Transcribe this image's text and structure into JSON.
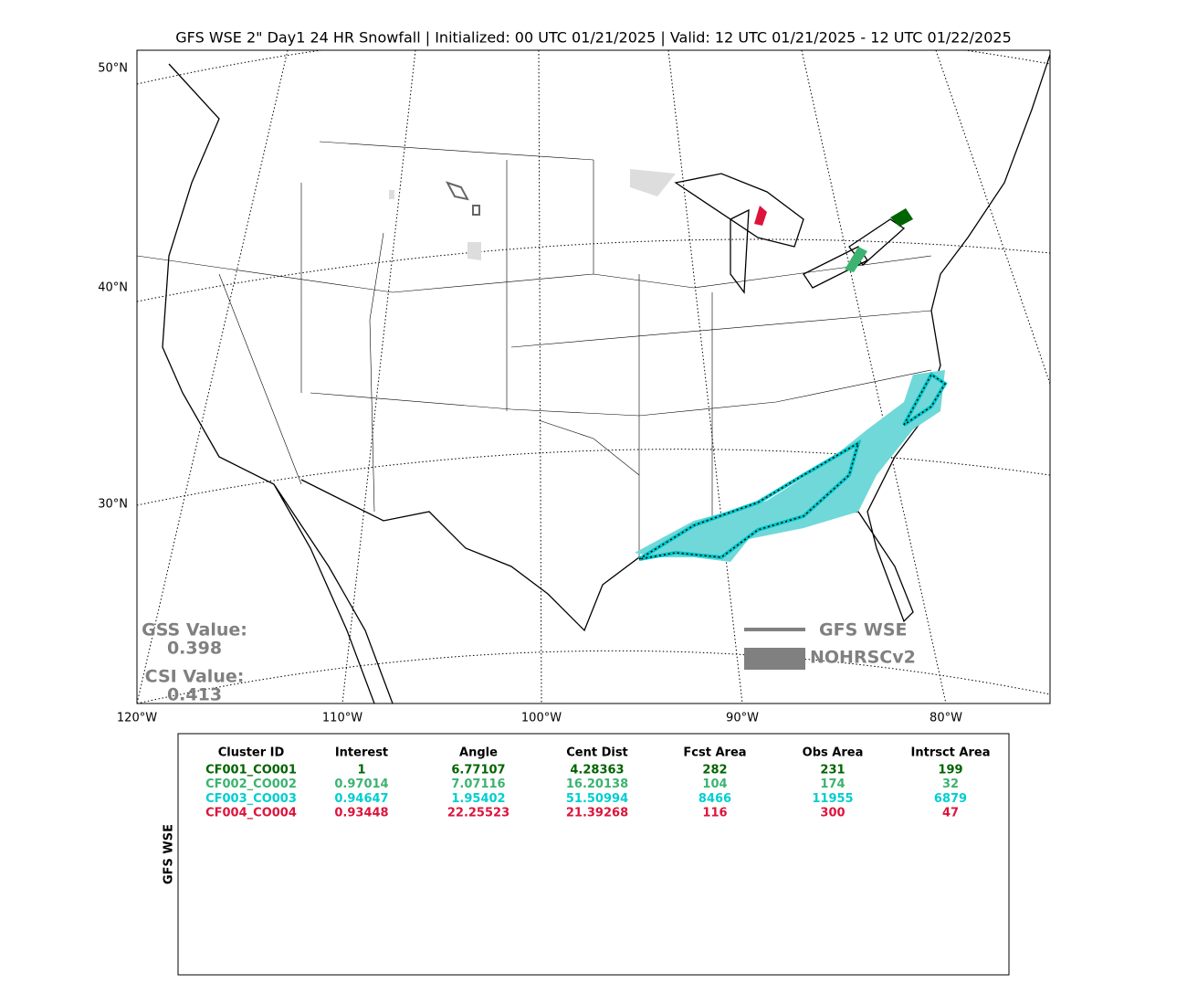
{
  "title": "GFS WSE 2\" Day1 24 HR Snowfall | Initialized: 00 UTC 01/21/2025 | Valid: 12 UTC 01/21/2025 - 12 UTC 01/22/2025",
  "map": {
    "lat_labels": [
      "50°N",
      "40°N",
      "30°N"
    ],
    "lon_labels": [
      "120°W",
      "110°W",
      "100°W",
      "90°W",
      "80°W"
    ],
    "scores": [
      {
        "label": "GSS Value:",
        "value": "0.398"
      },
      {
        "label": "CSI Value:",
        "value": "0.413"
      }
    ],
    "legend": [
      "GFS WSE",
      "NOHRSCv2"
    ]
  },
  "table": {
    "side_label": "GFS WSE",
    "columns": [
      "Cluster ID",
      "Interest",
      "Angle",
      "Cent Dist",
      "Fcst Area",
      "Obs Area",
      "Intrsct Area"
    ],
    "rows": [
      {
        "color": "#006400",
        "cells": [
          "CF001_CO001",
          "1",
          "6.77107",
          "4.28363",
          "282",
          "231",
          "199"
        ]
      },
      {
        "color": "#3cb371",
        "cells": [
          "CF002_CO002",
          "0.97014",
          "7.07116",
          "16.20138",
          "104",
          "174",
          "32"
        ]
      },
      {
        "color": "#00ced1",
        "cells": [
          "CF003_CO003",
          "0.94647",
          "1.95402",
          "51.50994",
          "8466",
          "11955",
          "6879"
        ]
      },
      {
        "color": "#dc143c",
        "cells": [
          "CF004_CO004",
          "0.93448",
          "22.25523",
          "21.39268",
          "116",
          "300",
          "47"
        ]
      }
    ]
  }
}
